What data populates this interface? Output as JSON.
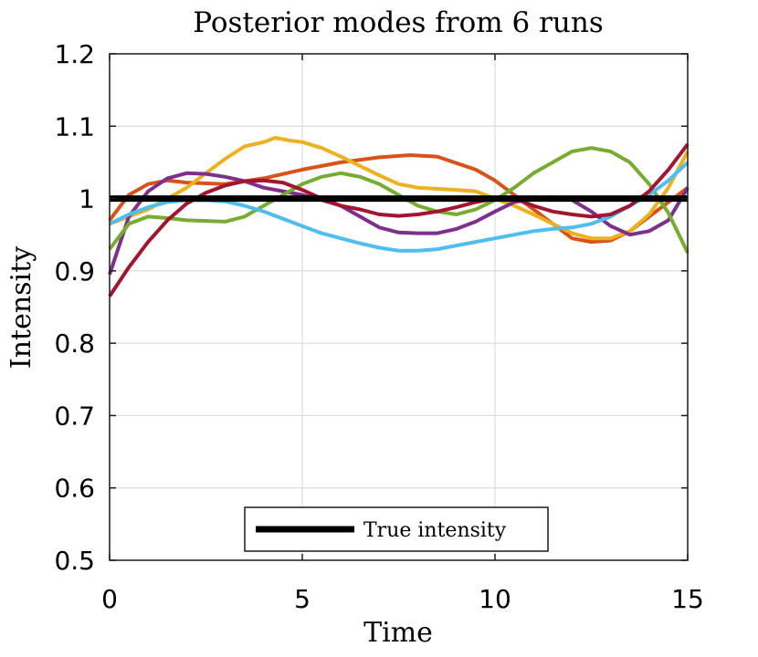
{
  "chart_data": {
    "type": "line",
    "title": "Posterior modes from 6 runs",
    "xlabel": "Time",
    "ylabel": "Intensity",
    "xlim": [
      0,
      15
    ],
    "ylim": [
      0.5,
      1.2
    ],
    "xticks": [
      0,
      5,
      10,
      15
    ],
    "yticks": [
      0.5,
      0.6,
      0.7,
      0.8,
      0.9,
      1,
      1.1,
      1.2
    ],
    "ytick_labels": [
      "0.5",
      "0.6",
      "0.7",
      "0.8",
      "0.9",
      "1",
      "1.1",
      "1.2"
    ],
    "grid": true,
    "legend_position": "bottom-center",
    "series": [
      {
        "color": "#d95319",
        "x": [
          0,
          0.5,
          1,
          1.5,
          2,
          3,
          4,
          5,
          6,
          7,
          7.8,
          8.5,
          9.5,
          10,
          10.5,
          11,
          11.5,
          12,
          12.5,
          13,
          13.5,
          14,
          14.5,
          15
        ],
        "y": [
          0.97,
          1.005,
          1.02,
          1.025,
          1.022,
          1.02,
          1.028,
          1.04,
          1.05,
          1.057,
          1.06,
          1.058,
          1.04,
          1.025,
          1.005,
          0.985,
          0.965,
          0.945,
          0.94,
          0.942,
          0.955,
          0.975,
          0.995,
          1.015
        ]
      },
      {
        "color": "#edb120",
        "x": [
          0,
          0.5,
          1,
          1.5,
          2,
          2.5,
          3,
          3.5,
          4,
          4.3,
          4.7,
          5,
          5.5,
          6,
          6.5,
          7,
          7.5,
          8,
          9,
          9.5,
          10,
          10.5,
          11,
          11.5,
          12,
          12.5,
          13,
          13.5,
          14,
          14.5,
          15
        ],
        "y": [
          0.965,
          0.975,
          0.985,
          1.0,
          1.015,
          1.035,
          1.055,
          1.072,
          1.078,
          1.084,
          1.08,
          1.078,
          1.07,
          1.058,
          1.045,
          1.032,
          1.02,
          1.015,
          1.012,
          1.01,
          1.0,
          0.99,
          0.978,
          0.965,
          0.952,
          0.945,
          0.945,
          0.955,
          0.978,
          1.015,
          1.065
        ]
      },
      {
        "color": "#7e2f8e",
        "x": [
          0,
          0.5,
          1,
          1.5,
          2,
          2.5,
          3,
          3.5,
          4,
          4.5,
          5,
          5.5,
          6,
          6.5,
          7,
          7.5,
          8,
          8.5,
          9,
          9.5,
          10,
          10.5,
          11,
          11.5,
          12,
          12.5,
          13,
          13.5,
          14,
          14.5,
          15
        ],
        "y": [
          0.895,
          0.975,
          1.01,
          1.028,
          1.035,
          1.034,
          1.03,
          1.024,
          1.015,
          1.01,
          1.005,
          0.998,
          0.99,
          0.975,
          0.96,
          0.953,
          0.952,
          0.952,
          0.958,
          0.968,
          0.982,
          0.995,
          1.0,
          1.002,
          0.998,
          0.982,
          0.962,
          0.95,
          0.955,
          0.97,
          1.015
        ]
      },
      {
        "color": "#77ac30",
        "x": [
          0,
          0.5,
          1,
          1.5,
          2,
          2.5,
          3,
          3.5,
          4,
          4.5,
          5,
          5.5,
          6,
          6.5,
          7,
          7.5,
          8,
          8.5,
          9,
          9.5,
          10,
          10.5,
          11,
          11.5,
          12,
          12.5,
          13,
          13.5,
          14,
          14.5,
          15
        ],
        "y": [
          0.93,
          0.965,
          0.975,
          0.973,
          0.97,
          0.969,
          0.968,
          0.975,
          0.99,
          1.005,
          1.02,
          1.03,
          1.035,
          1.03,
          1.02,
          1.005,
          0.99,
          0.982,
          0.978,
          0.985,
          0.998,
          1.015,
          1.035,
          1.05,
          1.065,
          1.07,
          1.065,
          1.05,
          1.02,
          0.98,
          0.925
        ]
      },
      {
        "color": "#4dbeee",
        "x": [
          0,
          0.5,
          1,
          1.5,
          2,
          2.5,
          3,
          3.5,
          4,
          4.5,
          5,
          5.5,
          6,
          6.5,
          7,
          7.5,
          8,
          8.5,
          9,
          9.5,
          10,
          10.5,
          11,
          11.5,
          12,
          12.5,
          13,
          13.5,
          14,
          14.5,
          15
        ],
        "y": [
          0.965,
          0.978,
          0.988,
          0.995,
          0.998,
          0.998,
          0.996,
          0.99,
          0.982,
          0.972,
          0.962,
          0.952,
          0.945,
          0.938,
          0.932,
          0.928,
          0.928,
          0.93,
          0.935,
          0.94,
          0.945,
          0.95,
          0.955,
          0.958,
          0.96,
          0.965,
          0.975,
          0.99,
          1.005,
          1.025,
          1.05
        ]
      },
      {
        "color": "#a2142f",
        "x": [
          0,
          0.5,
          1,
          1.5,
          2,
          2.5,
          3,
          3.5,
          4,
          4.5,
          5,
          5.5,
          6,
          6.5,
          7,
          7.5,
          8,
          8.5,
          9,
          9.5,
          10,
          10.5,
          11,
          11.5,
          12,
          12.5,
          13,
          13.5,
          14,
          14.5,
          15
        ],
        "y": [
          0.865,
          0.905,
          0.94,
          0.97,
          0.993,
          1.008,
          1.018,
          1.024,
          1.025,
          1.022,
          1.012,
          1.0,
          0.99,
          0.985,
          0.978,
          0.976,
          0.978,
          0.982,
          0.988,
          0.995,
          1.0,
          1.0,
          0.99,
          0.982,
          0.978,
          0.975,
          0.978,
          0.99,
          1.01,
          1.04,
          1.075
        ]
      },
      {
        "name": "True intensity",
        "color": "#000000",
        "x": [
          0,
          15
        ],
        "y": [
          1,
          1
        ]
      }
    ]
  }
}
